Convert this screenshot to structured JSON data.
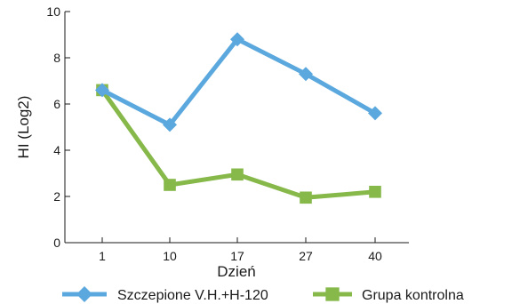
{
  "chart_data": {
    "type": "line",
    "title": "",
    "xlabel": "Dzień",
    "ylabel": "HI (Log2)",
    "categories": [
      "1",
      "10",
      "17",
      "27",
      "40"
    ],
    "ylim": [
      0,
      10
    ],
    "yticks": [
      0,
      2,
      4,
      6,
      8,
      10
    ],
    "grid": false,
    "legend_position": "bottom",
    "series": [
      {
        "name": "Szczepione V.H.+H-120",
        "values": [
          6.6,
          5.1,
          8.8,
          7.3,
          5.6
        ],
        "color": "#5aa8de",
        "marker": "diamond"
      },
      {
        "name": "Grupa kontrolna",
        "values": [
          6.6,
          2.5,
          2.95,
          1.95,
          2.2
        ],
        "color": "#86b84a",
        "marker": "square"
      }
    ]
  }
}
